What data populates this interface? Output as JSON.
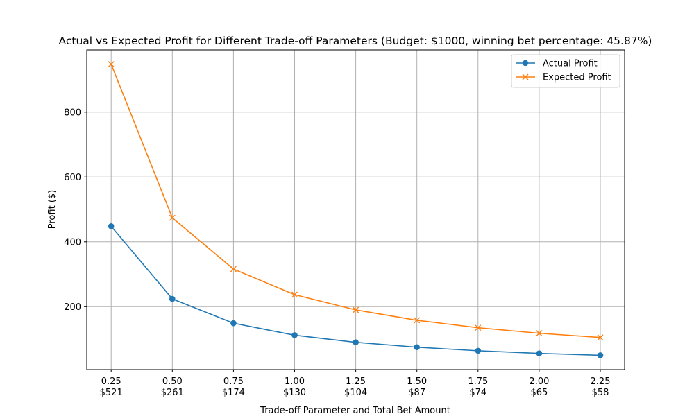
{
  "chart_data": {
    "type": "line",
    "title": "Actual vs Expected Profit for Different Trade-off Parameters (Budget: $1000, winning bet percentage: 45.87%)",
    "xlabel": "Trade-off Parameter and Total Bet Amount",
    "ylabel": "Profit ($)",
    "categories": [
      "0.25",
      "0.50",
      "0.75",
      "1.00",
      "1.25",
      "1.50",
      "1.75",
      "2.00",
      "2.25"
    ],
    "category_sublabels": [
      "$521",
      "$261",
      "$174",
      "$130",
      "$104",
      "$87",
      "$74",
      "$65",
      "$58"
    ],
    "series": [
      {
        "name": "Actual Profit",
        "marker": "circle",
        "color": "#1f77b4",
        "values": [
          448,
          224,
          149,
          112,
          90,
          75,
          64,
          56,
          50
        ]
      },
      {
        "name": "Expected Profit",
        "marker": "x",
        "color": "#ff7f0e",
        "values": [
          948,
          474,
          316,
          237,
          190,
          158,
          135,
          118,
          105
        ]
      }
    ],
    "ylim": [
      6,
      992
    ],
    "yticks": [
      200,
      400,
      600,
      800
    ],
    "grid": true,
    "legend_position": "top-right"
  }
}
